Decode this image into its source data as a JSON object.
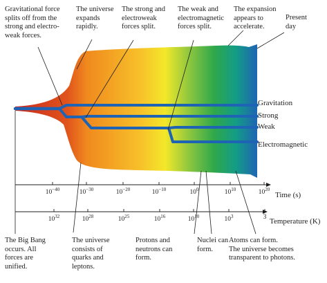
{
  "annotations": {
    "gravity_split": "Gravitational force\nsplits off from the\nstrong and electro-\nweak forces.",
    "expands": "The universe\nexpands\nrapidly.",
    "strong_split": "The strong and\nelectroweak\nforces split.",
    "weak_split": "The weak and\nelectromagnetic\nforces split.",
    "acceleration": "The expansion\nappears to\naccelerate.",
    "present_day": "Present\nday",
    "big_bang": "The Big Bang\noccurs. All\nforces  are\nunified.",
    "quarks": "The universe\nconsists of\nquarks and\nleptons.",
    "protons": "Protons and\nneutrons can\nform.",
    "nuclei": "Nuclei can\nform.",
    "atoms": "Atoms can form.\nThe universe becomes\ntransparent to photons."
  },
  "forces": {
    "gravitation": "Gravitation",
    "strong": "Strong",
    "weak": "Weak",
    "electromagnetic": "Electromagnetic"
  },
  "time_axis": {
    "label": "Time (s)",
    "ticks": [
      {
        "base": "10",
        "exp": "−40"
      },
      {
        "base": "10",
        "exp": "−30"
      },
      {
        "base": "10",
        "exp": "−20"
      },
      {
        "base": "10",
        "exp": "−10"
      },
      {
        "base": "10",
        "exp": "0"
      },
      {
        "base": "10",
        "exp": "10"
      },
      {
        "base": "10",
        "exp": "20"
      }
    ]
  },
  "temperature_axis": {
    "label": "Temperature (K)",
    "ticks": [
      {
        "base": "10",
        "exp": "32"
      },
      {
        "base": "10",
        "exp": "28"
      },
      {
        "base": "10",
        "exp": "25"
      },
      {
        "base": "10",
        "exp": "16"
      },
      {
        "base": "10",
        "exp": "10"
      },
      {
        "base": "10",
        "exp": "3"
      },
      {
        "base": "3",
        "exp": ""
      }
    ]
  },
  "colors": {
    "force_line": "#1f63b5",
    "early_red": "#c8281e",
    "orange": "#f08a1e",
    "yellow": "#f7e21e",
    "green": "#2fa84a",
    "teal": "#138f86",
    "blue": "#1f63b5"
  }
}
